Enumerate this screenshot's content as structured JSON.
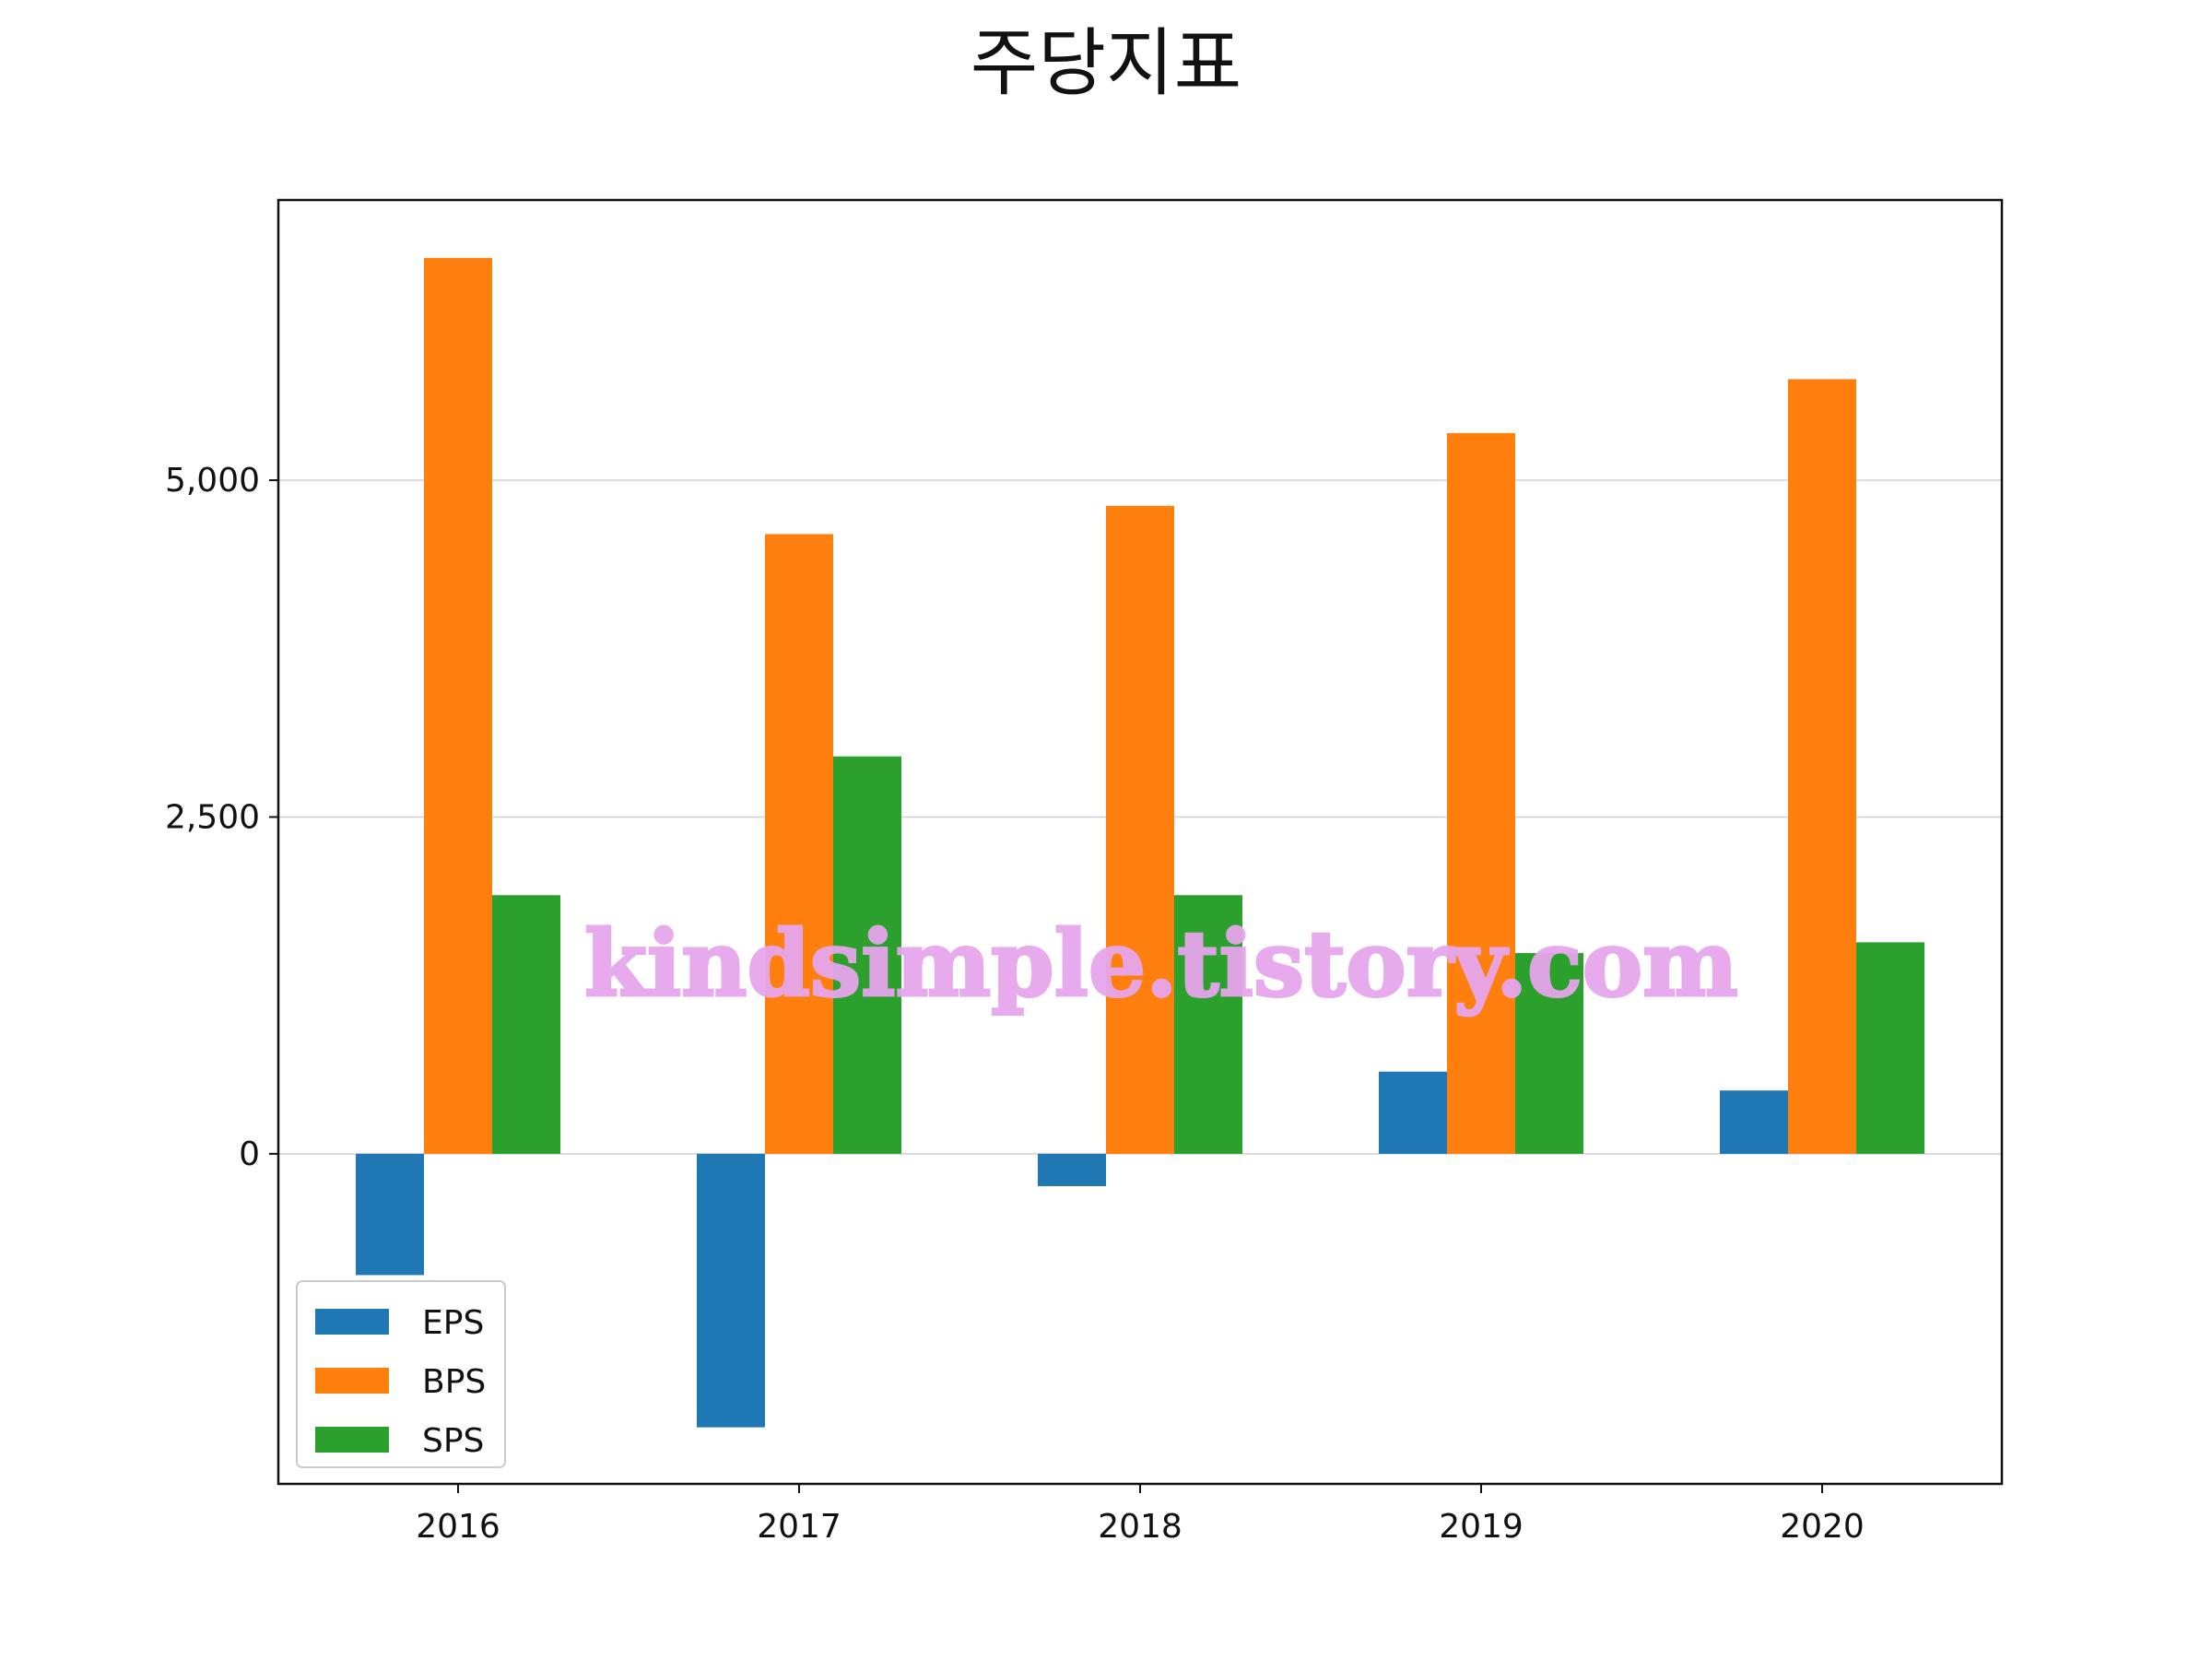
{
  "chart_data": {
    "type": "bar",
    "title": "주당지표",
    "xlabel": "",
    "ylabel": "",
    "categories": [
      "2016",
      "2017",
      "2018",
      "2019",
      "2020"
    ],
    "series": [
      {
        "name": "EPS",
        "color": "#1f77b4",
        "values": [
          -900,
          -2030,
          -240,
          610,
          470
        ]
      },
      {
        "name": "BPS",
        "color": "#ff7f0e",
        "values": [
          6650,
          4600,
          4810,
          5350,
          5750
        ]
      },
      {
        "name": "SPS",
        "color": "#2ca02c",
        "values": [
          1920,
          2950,
          1920,
          1490,
          1570
        ]
      }
    ],
    "ylim": [
      -2450,
      7080
    ],
    "yticks": [
      0,
      2500,
      5000
    ],
    "ytick_labels": [
      "0",
      "2,500",
      "5,000"
    ],
    "grid": "y",
    "legend": "lower-left",
    "watermark": "kindsimple.tistory.com"
  }
}
